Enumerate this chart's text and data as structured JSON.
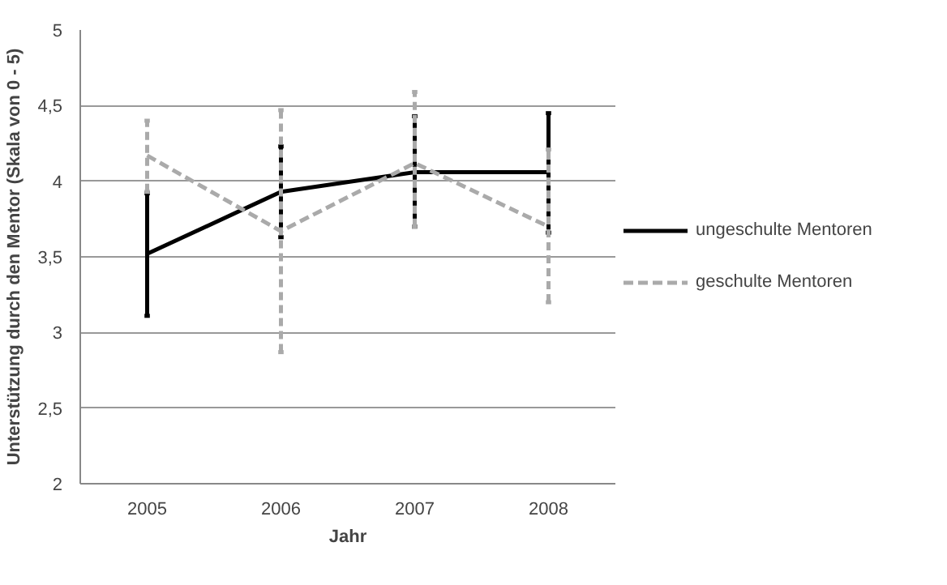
{
  "chart_data": {
    "type": "line",
    "xlabel": "Jahr",
    "ylabel": "Unterstützung durch den Mentor (Skala von 0 - 5)",
    "categories": [
      "2005",
      "2006",
      "2007",
      "2008"
    ],
    "series": [
      {
        "name": "ungeschulte Mentoren",
        "color": "#000000",
        "line_style": "solid",
        "values": [
          3.52,
          3.93,
          4.06,
          4.06
        ],
        "errors": [
          [
            3.11,
            3.92
          ],
          [
            3.63,
            4.23
          ],
          [
            3.7,
            4.43
          ],
          [
            3.66,
            4.45
          ]
        ]
      },
      {
        "name": "geschulte Mentoren",
        "color": "#aaaaaa",
        "line_style": "dashed",
        "values": [
          4.17,
          3.67,
          4.12,
          3.7
        ],
        "errors": [
          [
            3.93,
            4.4
          ],
          [
            2.87,
            4.47
          ],
          [
            3.7,
            4.59
          ],
          [
            3.2,
            4.21
          ]
        ]
      }
    ],
    "ylim": [
      2,
      5
    ],
    "yticks": [
      2,
      {
        "value": 2.5,
        "label": "2,5"
      },
      3,
      {
        "value": 3.5,
        "label": "3,5"
      },
      4,
      {
        "value": 4.5,
        "label": "4,5"
      },
      5
    ],
    "grid": "y",
    "legend": "right",
    "marker": "none"
  }
}
